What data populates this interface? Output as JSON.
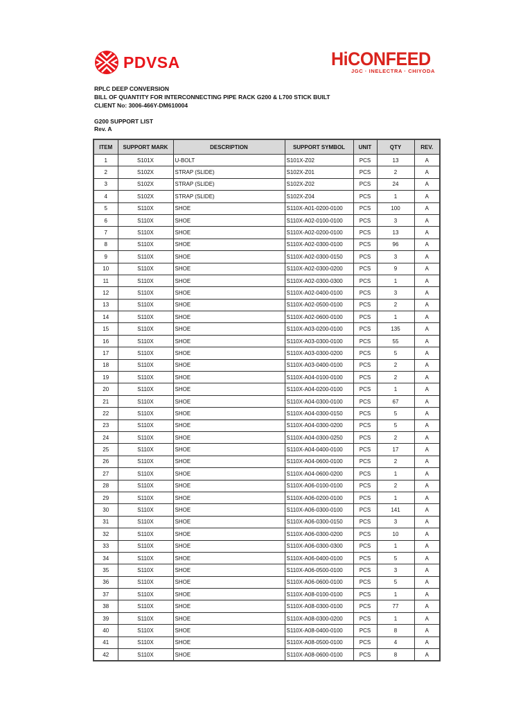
{
  "logos": {
    "left": "PDVSA",
    "right": "HiCONFEED",
    "right_sub": "JGC · INELECTRA · CHIYODA",
    "brand_color": "#e8161b"
  },
  "header": {
    "line1": "RPLC DEEP CONVERSION",
    "line2": "BILL OF QUANTITY FOR INTERCONNECTING PIPE RACK G200 & L700 STICK BUILT",
    "line3": "CLIENT No: 3006-466Y-DM610004",
    "list_title": "G200 SUPPORT LIST",
    "rev": "Rev.  A"
  },
  "table": {
    "columns": [
      "ITEM",
      "SUPPORT MARK",
      "DESCRIPTION",
      "SUPPORT SYMBOL",
      "UNIT",
      "QTY",
      "REV."
    ],
    "rows": [
      [
        "1",
        "S101X",
        "U-BOLT",
        "S101X-Z02",
        "PCS",
        "13",
        "A"
      ],
      [
        "2",
        "S102X",
        "STRAP (SLIDE)",
        "S102X-Z01",
        "PCS",
        "2",
        "A"
      ],
      [
        "3",
        "S102X",
        "STRAP (SLIDE)",
        "S102X-Z02",
        "PCS",
        "24",
        "A"
      ],
      [
        "4",
        "S102X",
        "STRAP (SLIDE)",
        "S102X-Z04",
        "PCS",
        "1",
        "A"
      ],
      [
        "5",
        "S110X",
        "SHOE",
        "S110X-A01-0200-0100",
        "PCS",
        "100",
        "A"
      ],
      [
        "6",
        "S110X",
        "SHOE",
        "S110X-A02-0100-0100",
        "PCS",
        "3",
        "A"
      ],
      [
        "7",
        "S110X",
        "SHOE",
        "S110X-A02-0200-0100",
        "PCS",
        "13",
        "A"
      ],
      [
        "8",
        "S110X",
        "SHOE",
        "S110X-A02-0300-0100",
        "PCS",
        "96",
        "A"
      ],
      [
        "9",
        "S110X",
        "SHOE",
        "S110X-A02-0300-0150",
        "PCS",
        "3",
        "A"
      ],
      [
        "10",
        "S110X",
        "SHOE",
        "S110X-A02-0300-0200",
        "PCS",
        "9",
        "A"
      ],
      [
        "11",
        "S110X",
        "SHOE",
        "S110X-A02-0300-0300",
        "PCS",
        "1",
        "A"
      ],
      [
        "12",
        "S110X",
        "SHOE",
        "S110X-A02-0400-0100",
        "PCS",
        "3",
        "A"
      ],
      [
        "13",
        "S110X",
        "SHOE",
        "S110X-A02-0500-0100",
        "PCS",
        "2",
        "A"
      ],
      [
        "14",
        "S110X",
        "SHOE",
        "S110X-A02-0600-0100",
        "PCS",
        "1",
        "A"
      ],
      [
        "15",
        "S110X",
        "SHOE",
        "S110X-A03-0200-0100",
        "PCS",
        "135",
        "A"
      ],
      [
        "16",
        "S110X",
        "SHOE",
        "S110X-A03-0300-0100",
        "PCS",
        "55",
        "A"
      ],
      [
        "17",
        "S110X",
        "SHOE",
        "S110X-A03-0300-0200",
        "PCS",
        "5",
        "A"
      ],
      [
        "18",
        "S110X",
        "SHOE",
        "S110X-A03-0400-0100",
        "PCS",
        "2",
        "A"
      ],
      [
        "19",
        "S110X",
        "SHOE",
        "S110X-A04-0100-0100",
        "PCS",
        "2",
        "A"
      ],
      [
        "20",
        "S110X",
        "SHOE",
        "S110X-A04-0200-0100",
        "PCS",
        "1",
        "A"
      ],
      [
        "21",
        "S110X",
        "SHOE",
        "S110X-A04-0300-0100",
        "PCS",
        "67",
        "A"
      ],
      [
        "22",
        "S110X",
        "SHOE",
        "S110X-A04-0300-0150",
        "PCS",
        "5",
        "A"
      ],
      [
        "23",
        "S110X",
        "SHOE",
        "S110X-A04-0300-0200",
        "PCS",
        "5",
        "A"
      ],
      [
        "24",
        "S110X",
        "SHOE",
        "S110X-A04-0300-0250",
        "PCS",
        "2",
        "A"
      ],
      [
        "25",
        "S110X",
        "SHOE",
        "S110X-A04-0400-0100",
        "PCS",
        "17",
        "A"
      ],
      [
        "26",
        "S110X",
        "SHOE",
        "S110X-A04-0600-0100",
        "PCS",
        "2",
        "A"
      ],
      [
        "27",
        "S110X",
        "SHOE",
        "S110X-A04-0600-0200",
        "PCS",
        "1",
        "A"
      ],
      [
        "28",
        "S110X",
        "SHOE",
        "S110X-A06-0100-0100",
        "PCS",
        "2",
        "A"
      ],
      [
        "29",
        "S110X",
        "SHOE",
        "S110X-A06-0200-0100",
        "PCS",
        "1",
        "A"
      ],
      [
        "30",
        "S110X",
        "SHOE",
        "S110X-A06-0300-0100",
        "PCS",
        "141",
        "A"
      ],
      [
        "31",
        "S110X",
        "SHOE",
        "S110X-A06-0300-0150",
        "PCS",
        "3",
        "A"
      ],
      [
        "32",
        "S110X",
        "SHOE",
        "S110X-A06-0300-0200",
        "PCS",
        "10",
        "A"
      ],
      [
        "33",
        "S110X",
        "SHOE",
        "S110X-A06-0300-0300",
        "PCS",
        "1",
        "A"
      ],
      [
        "34",
        "S110X",
        "SHOE",
        "S110X-A06-0400-0100",
        "PCS",
        "5",
        "A"
      ],
      [
        "35",
        "S110X",
        "SHOE",
        "S110X-A06-0500-0100",
        "PCS",
        "3",
        "A"
      ],
      [
        "36",
        "S110X",
        "SHOE",
        "S110X-A06-0600-0100",
        "PCS",
        "5",
        "A"
      ],
      [
        "37",
        "S110X",
        "SHOE",
        "S110X-A08-0100-0100",
        "PCS",
        "1",
        "A"
      ],
      [
        "38",
        "S110X",
        "SHOE",
        "S110X-A08-0300-0100",
        "PCS",
        "77",
        "A"
      ],
      [
        "39",
        "S110X",
        "SHOE",
        "S110X-A08-0300-0200",
        "PCS",
        "1",
        "A"
      ],
      [
        "40",
        "S110X",
        "SHOE",
        "S110X-A08-0400-0100",
        "PCS",
        "8",
        "A"
      ],
      [
        "41",
        "S110X",
        "SHOE",
        "S110X-A08-0500-0100",
        "PCS",
        "4",
        "A"
      ],
      [
        "42",
        "S110X",
        "SHOE",
        "S110X-A08-0600-0100",
        "PCS",
        "8",
        "A"
      ]
    ]
  }
}
